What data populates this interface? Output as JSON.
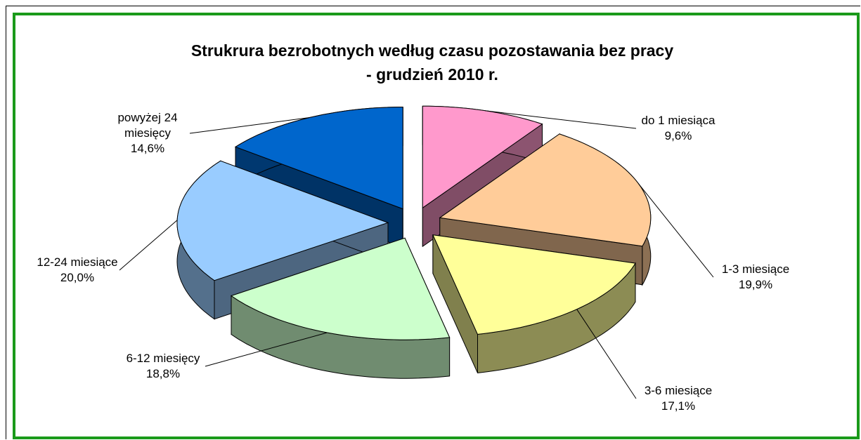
{
  "chart_data": {
    "type": "pie",
    "title": [
      "Strukrura bezrobotnych według czasu pozostawania bez pracy",
      "- grudzień 2010 r."
    ],
    "categories": [
      "do 1 miesiąca",
      "1-3 miesiące",
      "3-6 miesiące",
      "6-12 miesięcy",
      "12-24 miesiące",
      "powyżej 24 miesięcy"
    ],
    "values": [
      9.6,
      19.9,
      17.1,
      18.8,
      20.0,
      14.6
    ],
    "value_labels": [
      "9,6%",
      "19,9%",
      "17,1%",
      "18,8%",
      "20,0%",
      "14,6%"
    ],
    "colors": [
      "#ff99cc",
      "#ffcc99",
      "#ffff99",
      "#ccffcc",
      "#99ccff",
      "#0066cc"
    ]
  }
}
